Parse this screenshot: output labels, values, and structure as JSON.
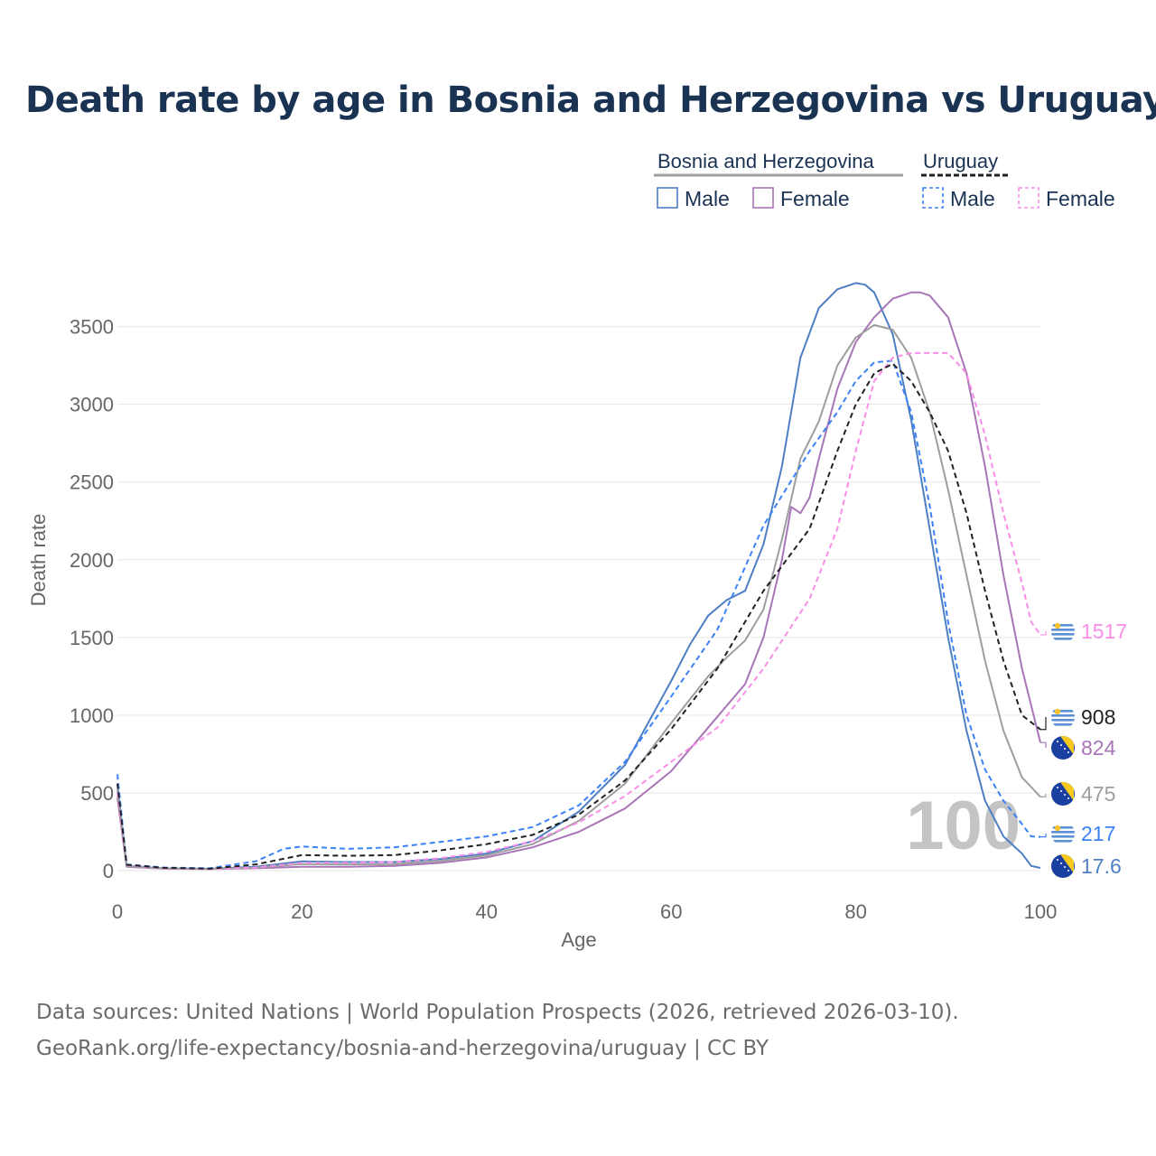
{
  "title": "Death rate by age in Bosnia and Herzegovina vs Uruguay",
  "footer": {
    "source": "Data sources: United Nations | World Population Prospects (2026, retrieved 2026-03-10).",
    "link": "GeoRank.org/life-expectancy/bosnia-and-herzegovina/uruguay | CC BY"
  },
  "chart_data": {
    "type": "line",
    "title": "Death rate by age in Bosnia and Herzegovina vs Uruguay",
    "xlabel": "Age",
    "ylabel": "Death rate",
    "xlim": [
      0,
      100
    ],
    "ylim": [
      0,
      3800
    ],
    "xticks": [
      0,
      20,
      40,
      60,
      80,
      100
    ],
    "yticks": [
      0,
      500,
      1000,
      1500,
      2000,
      2500,
      3000,
      3500
    ],
    "grid": true,
    "watermark": "100",
    "legend": {
      "groups": [
        {
          "country": "Bosnia and Herzegovina",
          "entries": [
            "Male",
            "Female"
          ]
        },
        {
          "country": "Uruguay",
          "entries": [
            "Male",
            "Female"
          ]
        }
      ]
    },
    "series": [
      {
        "name": "Bosnia and Herzegovina Male",
        "color": "#4e7fc2",
        "dash": false,
        "end_label": "17.6",
        "x": [
          0,
          1,
          5,
          10,
          15,
          20,
          25,
          30,
          35,
          40,
          45,
          50,
          55,
          60,
          62,
          64,
          66,
          68,
          70,
          72,
          74,
          76,
          78,
          80,
          81,
          82,
          84,
          86,
          88,
          90,
          92,
          94,
          96,
          98,
          99,
          100
        ],
        "y": [
          560,
          30,
          15,
          12,
          25,
          60,
          55,
          55,
          75,
          110,
          190,
          380,
          680,
          1220,
          1450,
          1640,
          1740,
          1800,
          2100,
          2600,
          3300,
          3620,
          3740,
          3780,
          3770,
          3720,
          3450,
          2900,
          2200,
          1500,
          900,
          450,
          220,
          110,
          30,
          17.6
        ]
      },
      {
        "name": "Bosnia and Herzegovina Female",
        "color": "#a875b6",
        "dash": false,
        "end_label": "824",
        "x": [
          0,
          1,
          5,
          10,
          15,
          20,
          25,
          30,
          35,
          40,
          45,
          50,
          55,
          60,
          64,
          66,
          68,
          70,
          72,
          73,
          74,
          75,
          76,
          78,
          80,
          82,
          84,
          86,
          87,
          88,
          90,
          92,
          94,
          96,
          98,
          100
        ],
        "y": [
          470,
          25,
          12,
          10,
          15,
          25,
          25,
          30,
          50,
          85,
          150,
          250,
          400,
          640,
          920,
          1060,
          1200,
          1500,
          2000,
          2340,
          2300,
          2400,
          2650,
          3100,
          3400,
          3560,
          3680,
          3720,
          3720,
          3700,
          3560,
          3200,
          2600,
          1900,
          1300,
          824
        ]
      },
      {
        "name": "Bosnia and Herzegovina Total",
        "color": "#9e9e9e",
        "dash": false,
        "end_label": "475",
        "x": [
          0,
          1,
          5,
          10,
          15,
          20,
          25,
          30,
          35,
          40,
          45,
          50,
          55,
          60,
          64,
          66,
          68,
          70,
          72,
          74,
          76,
          78,
          80,
          82,
          84,
          86,
          88,
          90,
          92,
          94,
          96,
          98,
          100
        ],
        "y": [
          520,
          28,
          14,
          11,
          20,
          42,
          40,
          42,
          62,
          98,
          170,
          320,
          560,
          950,
          1250,
          1370,
          1480,
          1680,
          2130,
          2650,
          2890,
          3250,
          3430,
          3510,
          3480,
          3300,
          2950,
          2450,
          1900,
          1350,
          900,
          600,
          475
        ]
      },
      {
        "name": "Uruguay Male",
        "color": "#3b82f6",
        "dash": true,
        "end_label": "217",
        "x": [
          0,
          1,
          5,
          10,
          15,
          18,
          20,
          25,
          30,
          35,
          40,
          45,
          50,
          55,
          60,
          65,
          70,
          75,
          78,
          80,
          82,
          84,
          86,
          88,
          90,
          92,
          94,
          96,
          98,
          99,
          100
        ],
        "y": [
          620,
          40,
          20,
          15,
          60,
          140,
          155,
          140,
          150,
          185,
          220,
          280,
          420,
          700,
          1120,
          1550,
          2220,
          2700,
          2950,
          3150,
          3270,
          3280,
          2950,
          2350,
          1600,
          1000,
          650,
          450,
          300,
          220,
          217
        ]
      },
      {
        "name": "Uruguay Female",
        "color": "#f98de8",
        "dash": true,
        "end_label": "1517",
        "x": [
          0,
          1,
          5,
          10,
          15,
          20,
          25,
          30,
          35,
          40,
          45,
          50,
          55,
          60,
          65,
          70,
          75,
          78,
          80,
          82,
          84,
          86,
          88,
          90,
          92,
          94,
          96,
          98,
          99,
          100
        ],
        "y": [
          500,
          35,
          15,
          10,
          20,
          50,
          50,
          55,
          80,
          120,
          190,
          310,
          480,
          700,
          920,
          1300,
          1750,
          2200,
          2700,
          3150,
          3300,
          3330,
          3330,
          3330,
          3200,
          2800,
          2300,
          1850,
          1600,
          1517
        ]
      },
      {
        "name": "Uruguay Total",
        "color": "#222222",
        "dash": true,
        "end_label": "908",
        "x": [
          0,
          1,
          5,
          10,
          15,
          20,
          25,
          30,
          35,
          40,
          45,
          50,
          55,
          60,
          65,
          70,
          75,
          78,
          80,
          82,
          84,
          86,
          88,
          90,
          92,
          94,
          96,
          98,
          100
        ],
        "y": [
          560,
          38,
          18,
          12,
          40,
          100,
          95,
          100,
          130,
          170,
          230,
          360,
          580,
          910,
          1300,
          1800,
          2200,
          2700,
          3000,
          3200,
          3260,
          3150,
          2950,
          2700,
          2300,
          1800,
          1350,
          1000,
          908
        ]
      }
    ]
  }
}
